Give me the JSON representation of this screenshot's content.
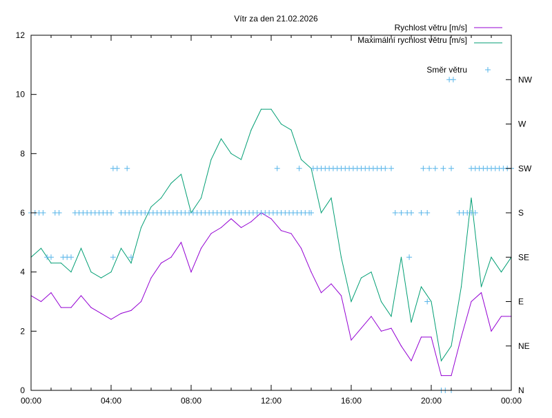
{
  "chart_data": {
    "type": "line",
    "title": "Vítr za den 21.02.2026",
    "xlabel": "",
    "ylabel": "",
    "xlim_hours": [
      0,
      24
    ],
    "ylim": [
      0,
      12
    ],
    "y2lim_degrees": [
      0,
      360
    ],
    "x_tick_labels": [
      "00:00",
      "04:00",
      "08:00",
      "12:00",
      "16:00",
      "20:00",
      "00:00"
    ],
    "y_tick_labels": [
      "0",
      "2",
      "4",
      "6",
      "8",
      "10",
      "12"
    ],
    "y2_tick_labels": [
      "N",
      "NE",
      "E",
      "SE",
      "S",
      "SW",
      "W",
      "NW"
    ],
    "legend_position": "top-right",
    "x_hours": [
      0,
      0.5,
      1,
      1.5,
      2,
      2.5,
      3,
      3.5,
      4,
      4.5,
      5,
      5.5,
      6,
      6.5,
      7,
      7.5,
      8,
      8.5,
      9,
      9.5,
      10,
      10.5,
      11,
      11.5,
      12,
      12.5,
      13,
      13.5,
      14,
      14.5,
      15,
      15.5,
      16,
      16.5,
      17,
      17.5,
      18,
      18.5,
      19,
      19.5,
      20,
      20.5,
      21,
      21.5,
      22,
      22.5,
      23,
      23.5,
      24
    ],
    "series": [
      {
        "name": "Rychlost větru [m/s]",
        "color": "#9400d3",
        "values": [
          3.2,
          3.0,
          3.3,
          2.8,
          2.8,
          3.2,
          2.8,
          2.6,
          2.4,
          2.6,
          2.7,
          3.0,
          3.8,
          4.3,
          4.5,
          5.0,
          4.0,
          4.8,
          5.3,
          5.5,
          5.8,
          5.5,
          5.7,
          6.0,
          5.8,
          5.4,
          5.3,
          4.8,
          4.0,
          3.3,
          3.6,
          3.2,
          1.7,
          2.1,
          2.5,
          2.0,
          2.1,
          1.5,
          1.0,
          1.8,
          1.8,
          0.5,
          0.5,
          1.8,
          3.0,
          3.3,
          2.0,
          2.5,
          2.5
        ]
      },
      {
        "name": "Maximální rychlost větru [m/s]",
        "color": "#009e73",
        "values": [
          4.5,
          4.8,
          4.3,
          4.3,
          4.0,
          4.8,
          4.0,
          3.8,
          4.0,
          4.8,
          4.3,
          5.5,
          6.2,
          6.5,
          7.0,
          7.3,
          6.0,
          6.5,
          7.8,
          8.5,
          8.0,
          7.8,
          8.8,
          9.5,
          9.5,
          9.0,
          8.8,
          7.8,
          7.5,
          6.0,
          6.5,
          4.5,
          3.0,
          3.8,
          4.0,
          3.0,
          2.5,
          4.5,
          2.3,
          3.5,
          3.0,
          1.0,
          1.5,
          3.5,
          6.5,
          3.5,
          4.5,
          4.0,
          4.5
        ]
      }
    ],
    "direction_series": {
      "name": "Směr větru",
      "color": "#56b4e9",
      "groups": [
        {
          "dir": "S",
          "deg": 180,
          "hours": [
            0,
            0.2,
            0.4,
            0.6,
            1.2,
            1.4,
            2.2,
            2.4,
            2.6,
            2.8,
            3.0,
            3.2,
            3.4,
            3.6,
            3.8,
            4.0,
            4.5,
            4.7,
            4.9,
            5.1,
            5.3,
            5.5,
            5.7,
            5.9,
            6.1,
            6.3,
            6.5,
            6.7,
            6.9,
            7.1,
            7.3,
            7.5,
            7.7,
            7.9,
            8.1,
            8.3,
            8.5,
            8.7,
            8.9,
            9.1,
            9.3,
            9.5,
            9.7,
            9.9,
            10.1,
            10.3,
            10.5,
            10.7,
            10.9,
            11.1,
            11.3,
            11.5,
            11.7,
            11.9,
            12.1,
            12.3,
            12.5,
            12.7,
            12.9,
            13.1,
            13.3,
            13.5,
            13.7,
            13.9,
            14.0,
            18.2,
            18.5,
            18.8,
            19.0,
            19.5,
            19.8,
            21.4,
            21.6,
            21.8,
            22.0,
            22.2
          ]
        },
        {
          "dir": "SE",
          "deg": 135,
          "hours": [
            0.8,
            1.0,
            1.6,
            1.8,
            2.0,
            4.1,
            5.0,
            18.9
          ]
        },
        {
          "dir": "SW",
          "deg": 225,
          "hours": [
            4.1,
            4.3,
            4.8,
            12.3,
            13.4,
            14.1,
            14.3,
            14.5,
            14.7,
            14.9,
            15.1,
            15.3,
            15.5,
            15.7,
            15.9,
            16.1,
            16.3,
            16.5,
            16.7,
            16.9,
            17.1,
            17.3,
            17.5,
            17.7,
            18.0,
            19.6,
            19.9,
            20.2,
            20.6,
            21.0,
            22.0,
            22.2,
            22.4,
            22.6,
            22.8,
            23.0,
            23.2,
            23.4,
            23.6,
            23.8,
            24.0
          ]
        },
        {
          "dir": "E",
          "deg": 90,
          "hours": [
            19.8
          ]
        },
        {
          "dir": "NW",
          "deg": 315,
          "hours": [
            20.9,
            21.1
          ]
        },
        {
          "dir": "N",
          "deg": 0,
          "hours": [
            20.5,
            20.7,
            21.0
          ]
        }
      ]
    }
  }
}
